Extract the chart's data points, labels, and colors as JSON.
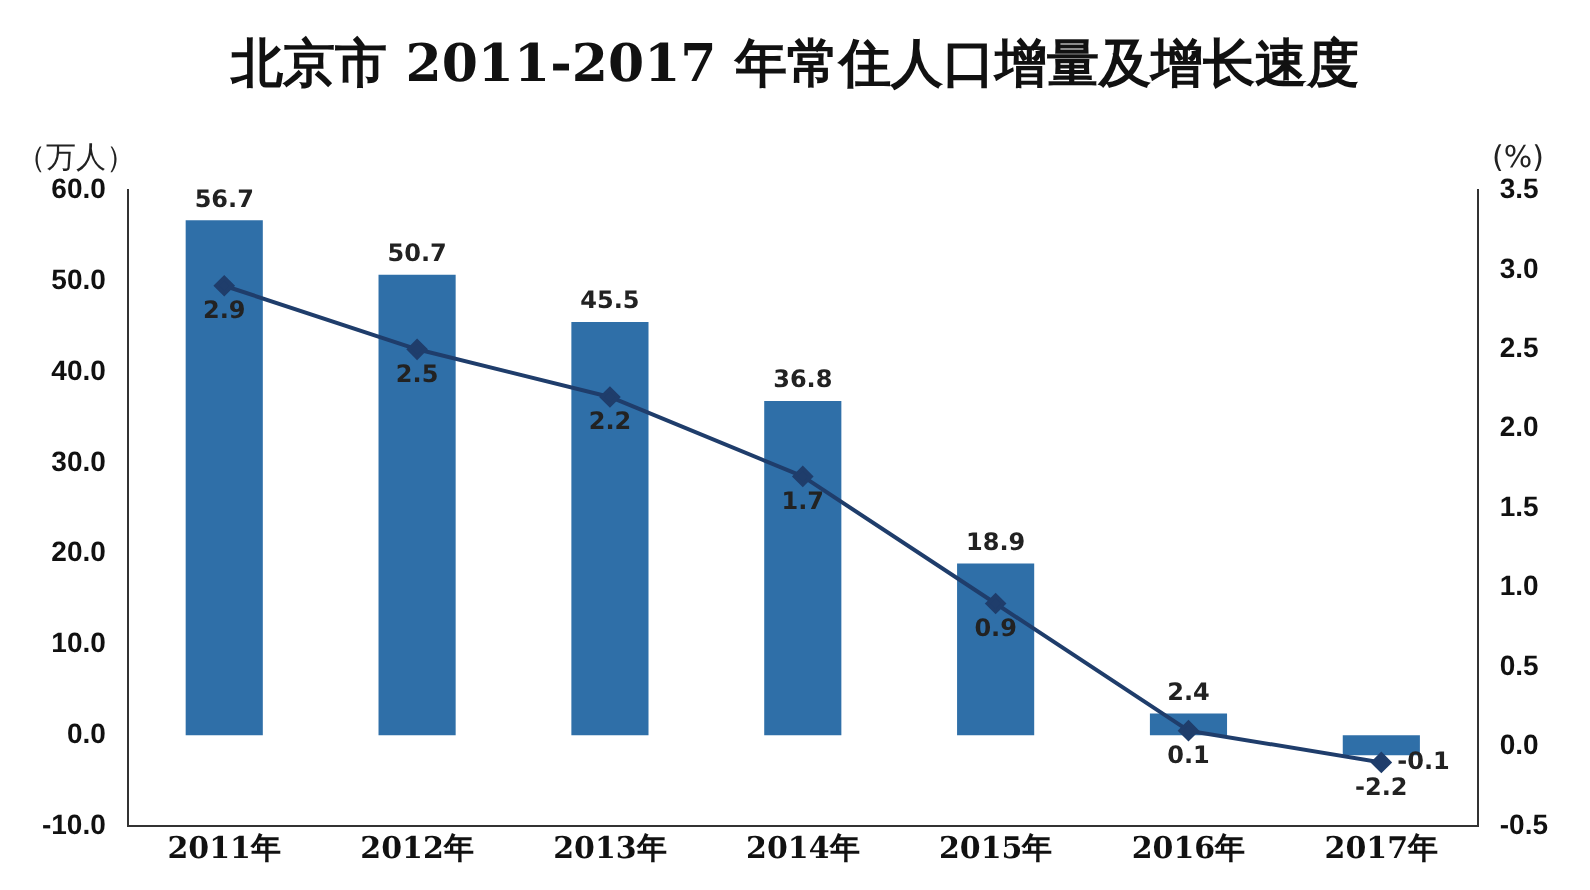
{
  "chart_data": {
    "type": "bar",
    "title": "北京市 2011-2017 年常住人口增量及增长速度",
    "ylabel": "（万人）",
    "y2label": "(%)",
    "categories": [
      "2011年",
      "2012年",
      "2013年",
      "2014年",
      "2015年",
      "2016年",
      "2017年"
    ],
    "series": [
      {
        "color": "#2f6fa8",
        "values": [
          56.7,
          50.7,
          45.5,
          36.8,
          18.9,
          2.4,
          -2.2
        ]
      },
      {
        "type": "line",
        "axis": "y2",
        "color": "#1f3d6b",
        "values": [
          2.9,
          2.5,
          2.2,
          1.7,
          0.9,
          0.1,
          -0.1
        ]
      }
    ],
    "ylim": [
      -10,
      60
    ],
    "yticks": [
      {
        "value": -10,
        "label": "-10.0"
      },
      {
        "value": 0,
        "label": "0.0"
      },
      {
        "value": 10,
        "label": "10.0"
      },
      {
        "value": 20,
        "label": "20.0"
      },
      {
        "value": 30,
        "label": "30.0"
      },
      {
        "value": 40,
        "label": "40.0"
      },
      {
        "value": 50,
        "label": "50.0"
      },
      {
        "value": 60,
        "label": "60.0"
      }
    ],
    "y2lim": [
      -0.5,
      3.5
    ],
    "y2ticks": [
      -0.5,
      {
        "value": 0,
        "label": "0.0"
      },
      0.5,
      {
        "value": 1,
        "label": "1.0"
      },
      1.5,
      {
        "value": 2,
        "label": "2.0"
      },
      2.5,
      {
        "value": 3,
        "label": "3.0"
      },
      3.5
    ],
    "data_labels": true,
    "marker": "diamond",
    "grid": false,
    "legend": false
  }
}
